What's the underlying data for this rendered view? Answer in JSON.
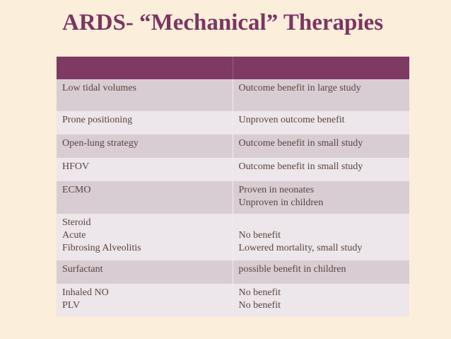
{
  "title": "ARDS- “Mechanical” Therapies",
  "table": {
    "header": [
      "",
      ""
    ],
    "rows": [
      {
        "therapy": "Low tidal volumes",
        "outcome": "Outcome benefit in large study"
      },
      {
        "therapy": "Prone positioning",
        "outcome": "Unproven outcome benefit"
      },
      {
        "therapy": "Open-lung strategy",
        "outcome": "Outcome benefit in small study"
      },
      {
        "therapy": "HFOV",
        "outcome": "Outcome benefit in small study"
      },
      {
        "therapy": "ECMO",
        "outcome": "Proven in neonates\nUnproven in children"
      },
      {
        "therapy": "Steroid\nAcute\nFibrosing Alveolitis",
        "outcome": "\nNo benefit\nLowered mortality, small study"
      },
      {
        "therapy": "Surfactant",
        "outcome": "possible benefit in children"
      },
      {
        "therapy": "Inhaled NO\nPLV",
        "outcome": "No benefit\nNo benefit"
      }
    ]
  },
  "colors": {
    "header": "#7e3a63",
    "title": "#7c3560",
    "background": "#fbeedb"
  }
}
